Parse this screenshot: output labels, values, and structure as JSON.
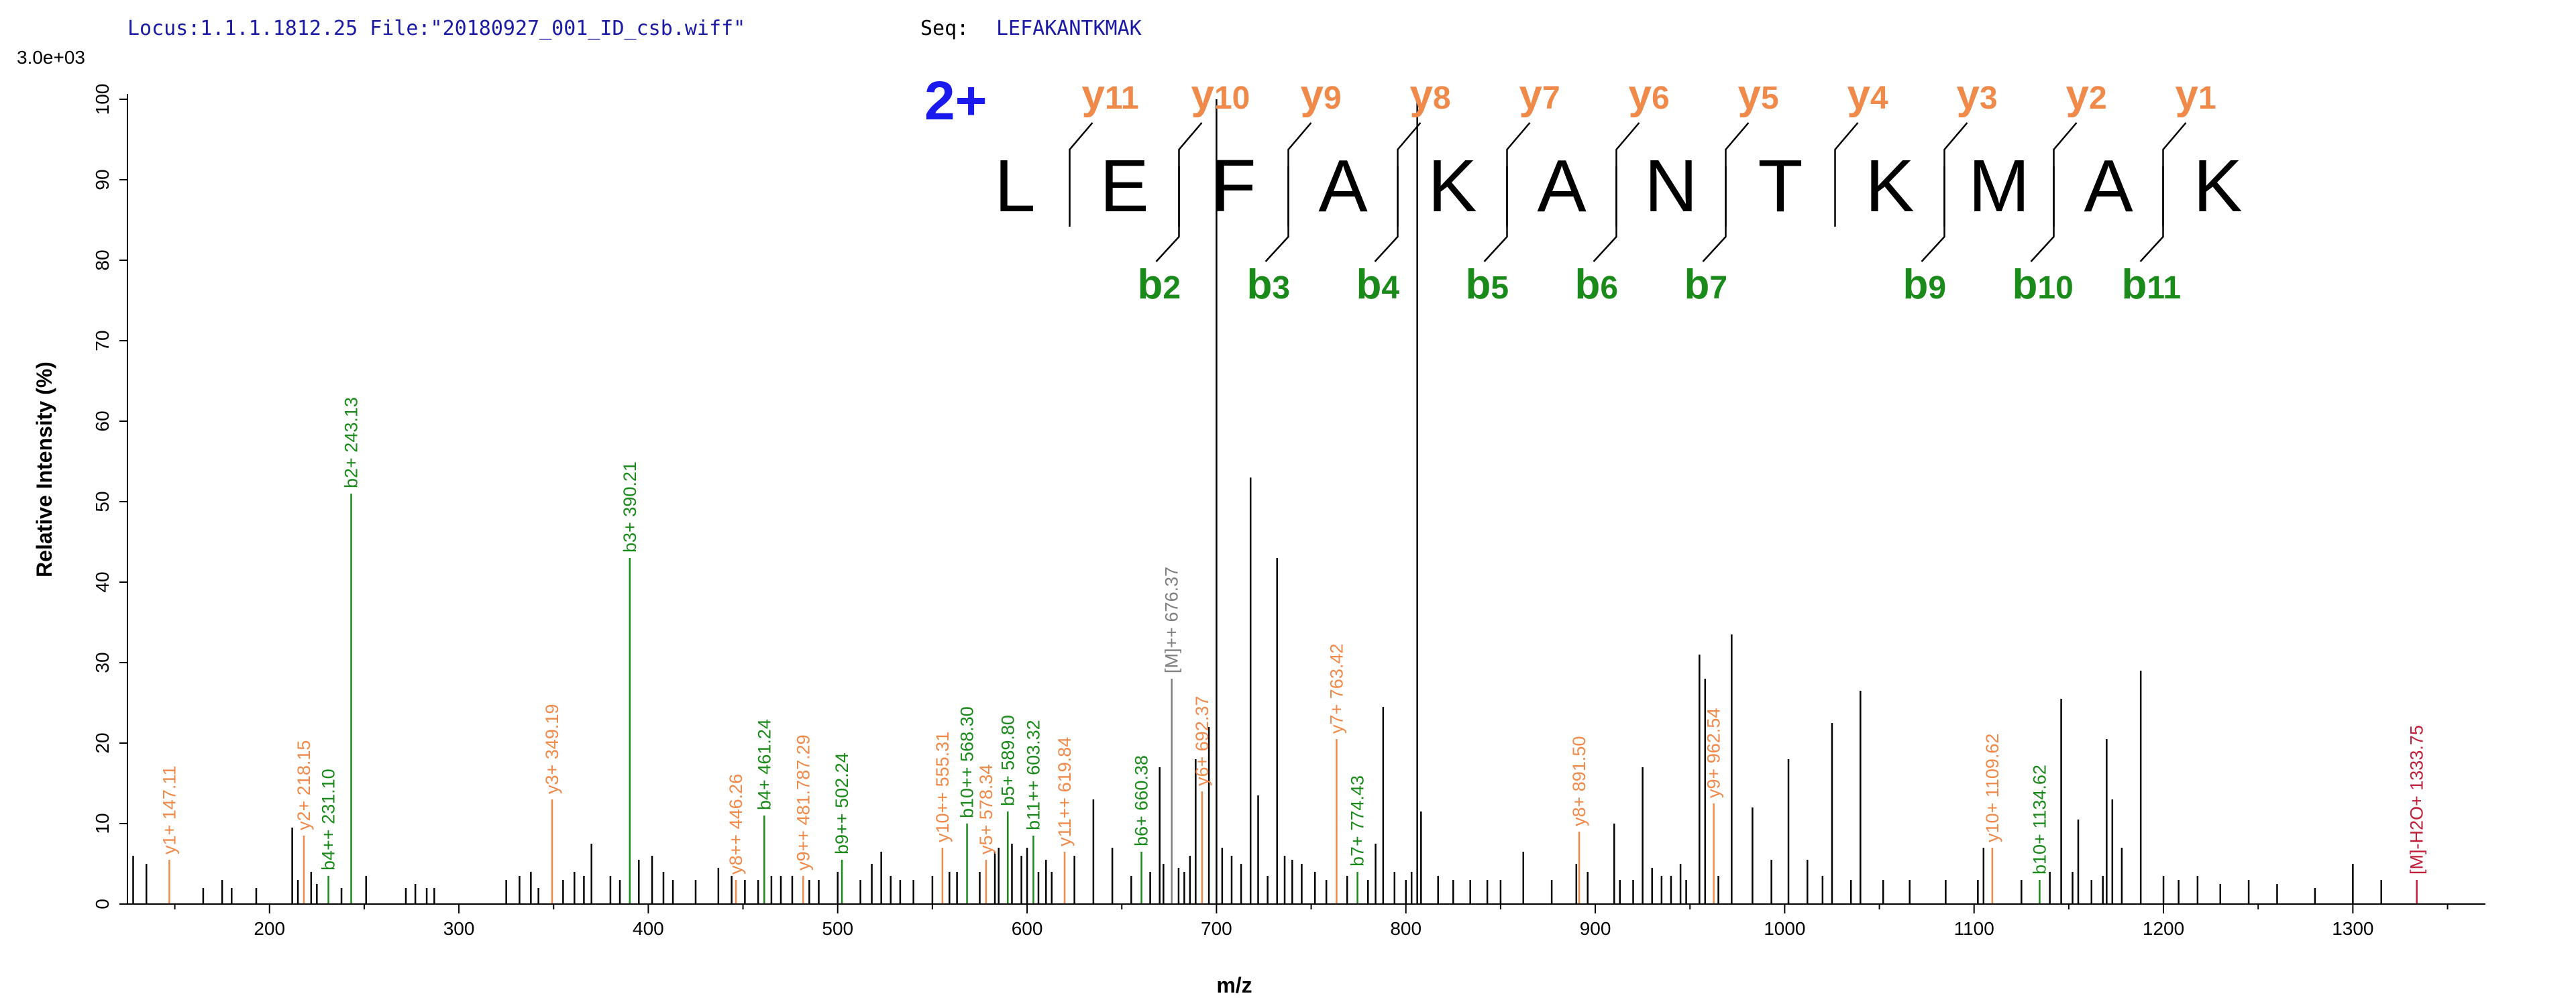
{
  "header": {
    "locus_label": "Locus:1.1.1.1812.25 File:\"20180927_001_ID_csb.wiff\"",
    "seq_label": "Seq:",
    "seq_value": "LEFAKANTKMAK"
  },
  "annotation": {
    "charge": "2+",
    "residues": [
      "L",
      "E",
      "F",
      "A",
      "K",
      "A",
      "N",
      "T",
      "K",
      "M",
      "A",
      "K"
    ],
    "y_ions": [
      {
        "ion": "y",
        "num": "11"
      },
      {
        "ion": "y",
        "num": "10"
      },
      {
        "ion": "y",
        "num": "9"
      },
      {
        "ion": "y",
        "num": "8"
      },
      {
        "ion": "y",
        "num": "7"
      },
      {
        "ion": "y",
        "num": "6"
      },
      {
        "ion": "y",
        "num": "5"
      },
      {
        "ion": "y",
        "num": "4"
      },
      {
        "ion": "y",
        "num": "3"
      },
      {
        "ion": "y",
        "num": "2"
      },
      {
        "ion": "y",
        "num": "1"
      }
    ],
    "b_ions": [
      {
        "ion": "b",
        "num": "2",
        "after": 2
      },
      {
        "ion": "b",
        "num": "3",
        "after": 3
      },
      {
        "ion": "b",
        "num": "4",
        "after": 4
      },
      {
        "ion": "b",
        "num": "5",
        "after": 5
      },
      {
        "ion": "b",
        "num": "6",
        "after": 6
      },
      {
        "ion": "b",
        "num": "7",
        "after": 7
      },
      {
        "ion": "b",
        "num": "9",
        "after": 9
      },
      {
        "ion": "b",
        "num": "10",
        "after": 10
      },
      {
        "ion": "b",
        "num": "11",
        "after": 11
      }
    ],
    "colors": {
      "y": "#f08a4b",
      "b": "#1a8a1a",
      "charge": "#1a1aee"
    }
  },
  "chart_data": {
    "type": "bar",
    "xlabel": "m/z",
    "ylabel": "Relative  Intensity (%)",
    "max_intensity_label": "3.0e+03",
    "xlim": [
      125,
      1370
    ],
    "ylim": [
      0,
      100
    ],
    "x_ticks": [
      200,
      300,
      400,
      500,
      600,
      700,
      800,
      900,
      1000,
      1100,
      1200,
      1300
    ],
    "y_ticks": [
      0,
      10,
      20,
      30,
      40,
      50,
      60,
      70,
      80,
      90,
      100
    ],
    "colors": {
      "y": "#f08a4b",
      "b": "#1a8a1a",
      "M": "#808080",
      "loss": "#c0203a",
      "none": "#000000"
    },
    "labeled_peaks": [
      {
        "mz": 147.11,
        "intensity": 5.5,
        "type": "y",
        "label": "y1+ 147.11"
      },
      {
        "mz": 218.15,
        "intensity": 8.5,
        "type": "y",
        "label": "y2+ 218.15"
      },
      {
        "mz": 231.1,
        "intensity": 3.5,
        "type": "b",
        "label": "b4++ 231.10"
      },
      {
        "mz": 243.13,
        "intensity": 51,
        "type": "b",
        "label": "b2+ 243.13"
      },
      {
        "mz": 349.19,
        "intensity": 13,
        "type": "y",
        "label": "y3+ 349.19"
      },
      {
        "mz": 390.21,
        "intensity": 43,
        "type": "b",
        "label": "b3+ 390.21"
      },
      {
        "mz": 446.26,
        "intensity": 3,
        "type": "y",
        "label": "y8++ 446.26"
      },
      {
        "mz": 461.24,
        "intensity": 11,
        "type": "b",
        "label": "b4+ 461.24"
      },
      {
        "mz": 481.79,
        "intensity": 3.5,
        "type": "y",
        "label": "y9++ 481.787.29"
      },
      {
        "mz": 502.24,
        "intensity": 5.5,
        "type": "b",
        "label": "b9++ 502.24"
      },
      {
        "mz": 555.31,
        "intensity": 7,
        "type": "y",
        "label": "y10++ 555.31"
      },
      {
        "mz": 568.3,
        "intensity": 10,
        "type": "b",
        "label": "b10++ 568.30"
      },
      {
        "mz": 578.34,
        "intensity": 5.5,
        "type": "y",
        "label": "y5+ 578.34"
      },
      {
        "mz": 589.8,
        "intensity": 11.5,
        "type": "b",
        "label": "b5+ 589.80"
      },
      {
        "mz": 603.32,
        "intensity": 8.5,
        "type": "b",
        "label": "b11++ 603.32"
      },
      {
        "mz": 619.84,
        "intensity": 6.5,
        "type": "y",
        "label": "y11++ 619.84"
      },
      {
        "mz": 660.38,
        "intensity": 6.5,
        "type": "b",
        "label": "b6+ 660.38"
      },
      {
        "mz": 676.37,
        "intensity": 28,
        "type": "M",
        "label": "[M]++ 676.37"
      },
      {
        "mz": 692.37,
        "intensity": 14,
        "type": "y",
        "label": "y6+ 692.37"
      },
      {
        "mz": 763.42,
        "intensity": 20.5,
        "type": "y",
        "label": "y7+ 763.42"
      },
      {
        "mz": 774.43,
        "intensity": 4,
        "type": "b",
        "label": "b7+ 774.43"
      },
      {
        "mz": 891.5,
        "intensity": 9,
        "type": "y",
        "label": "y8+ 891.50"
      },
      {
        "mz": 962.54,
        "intensity": 12.5,
        "type": "y",
        "label": "y9+ 962.54"
      },
      {
        "mz": 1109.62,
        "intensity": 7,
        "type": "y",
        "label": "y10+ 1109.62"
      },
      {
        "mz": 1134.62,
        "intensity": 3,
        "type": "b",
        "label": "b10+ 1134.62"
      },
      {
        "mz": 1333.75,
        "intensity": 3,
        "type": "loss",
        "label": "[M]-H2O+ 1333.75"
      }
    ],
    "unlabeled_peaks": [
      [
        128,
        6
      ],
      [
        135,
        5
      ],
      [
        165,
        2
      ],
      [
        175,
        3
      ],
      [
        180,
        2
      ],
      [
        193,
        2
      ],
      [
        212,
        9.5
      ],
      [
        215,
        3
      ],
      [
        222,
        4
      ],
      [
        225,
        2.5
      ],
      [
        238,
        2
      ],
      [
        251,
        3.5
      ],
      [
        272,
        2
      ],
      [
        277,
        2.5
      ],
      [
        283,
        2
      ],
      [
        287,
        2
      ],
      [
        325,
        3
      ],
      [
        332,
        3.5
      ],
      [
        338,
        4
      ],
      [
        342,
        2
      ],
      [
        355,
        3
      ],
      [
        361,
        4
      ],
      [
        366,
        3.5
      ],
      [
        370,
        7.5
      ],
      [
        380,
        3.5
      ],
      [
        385,
        3
      ],
      [
        395,
        5.5
      ],
      [
        402,
        6
      ],
      [
        408,
        4
      ],
      [
        413,
        3
      ],
      [
        425,
        3
      ],
      [
        437,
        4.5
      ],
      [
        444,
        3.5
      ],
      [
        451,
        3
      ],
      [
        458,
        3
      ],
      [
        465,
        3.5
      ],
      [
        470,
        3.5
      ],
      [
        476,
        3.5
      ],
      [
        485,
        3
      ],
      [
        490,
        3
      ],
      [
        500,
        4
      ],
      [
        512,
        3
      ],
      [
        518,
        5
      ],
      [
        523,
        6.5
      ],
      [
        528,
        3.5
      ],
      [
        533,
        3
      ],
      [
        540,
        3
      ],
      [
        550,
        3.5
      ],
      [
        559,
        4
      ],
      [
        563,
        4
      ],
      [
        575,
        4
      ],
      [
        583,
        6.5
      ],
      [
        585,
        7
      ],
      [
        592,
        7.5
      ],
      [
        597,
        6
      ],
      [
        600,
        7
      ],
      [
        606,
        4
      ],
      [
        610,
        5.5
      ],
      [
        613,
        4
      ],
      [
        625,
        6
      ],
      [
        635,
        13
      ],
      [
        645,
        7
      ],
      [
        655,
        3.5
      ],
      [
        665,
        4
      ],
      [
        670,
        17
      ],
      [
        672,
        5
      ],
      [
        680,
        4.5
      ],
      [
        683,
        4
      ],
      [
        686,
        6
      ],
      [
        689,
        18
      ],
      [
        696,
        22
      ],
      [
        700,
        100
      ],
      [
        703,
        7
      ],
      [
        708,
        6
      ],
      [
        713,
        5
      ],
      [
        718,
        53
      ],
      [
        722,
        13.5
      ],
      [
        727,
        3.5
      ],
      [
        732,
        43
      ],
      [
        736,
        6
      ],
      [
        740,
        5.5
      ],
      [
        745,
        5
      ],
      [
        752,
        4
      ],
      [
        758,
        3
      ],
      [
        769,
        3.5
      ],
      [
        780,
        3
      ],
      [
        784,
        7.5
      ],
      [
        788,
        24.5
      ],
      [
        794,
        4
      ],
      [
        800,
        3
      ],
      [
        803,
        4
      ],
      [
        806,
        100
      ],
      [
        808,
        11.5
      ],
      [
        817,
        3.5
      ],
      [
        825,
        3
      ],
      [
        834,
        3
      ],
      [
        843,
        3
      ],
      [
        850,
        3
      ],
      [
        862,
        6.5
      ],
      [
        877,
        3
      ],
      [
        890,
        5
      ],
      [
        896,
        4
      ],
      [
        910,
        10
      ],
      [
        913,
        3
      ],
      [
        920,
        3
      ],
      [
        925,
        17
      ],
      [
        930,
        4.5
      ],
      [
        935,
        3.5
      ],
      [
        940,
        3.5
      ],
      [
        945,
        5
      ],
      [
        948,
        3
      ],
      [
        955,
        31
      ],
      [
        958,
        28
      ],
      [
        965,
        3.5
      ],
      [
        972,
        33.5
      ],
      [
        983,
        12
      ],
      [
        993,
        5.5
      ],
      [
        1002,
        18
      ],
      [
        1012,
        5.5
      ],
      [
        1020,
        3.5
      ],
      [
        1025,
        22.5
      ],
      [
        1035,
        3
      ],
      [
        1040,
        26.5
      ],
      [
        1052,
        3
      ],
      [
        1066,
        3
      ],
      [
        1085,
        3
      ],
      [
        1102,
        3
      ],
      [
        1105,
        7
      ],
      [
        1125,
        3
      ],
      [
        1140,
        4
      ],
      [
        1146,
        25.5
      ],
      [
        1152,
        4
      ],
      [
        1155,
        10.5
      ],
      [
        1162,
        3
      ],
      [
        1168,
        3.5
      ],
      [
        1170,
        20.5
      ],
      [
        1173,
        13
      ],
      [
        1178,
        7
      ],
      [
        1188,
        29
      ],
      [
        1200,
        3.5
      ],
      [
        1208,
        3
      ],
      [
        1218,
        3.5
      ],
      [
        1230,
        2.5
      ],
      [
        1245,
        3
      ],
      [
        1260,
        2.5
      ],
      [
        1280,
        2
      ],
      [
        1300,
        5
      ],
      [
        1315,
        3
      ]
    ]
  }
}
